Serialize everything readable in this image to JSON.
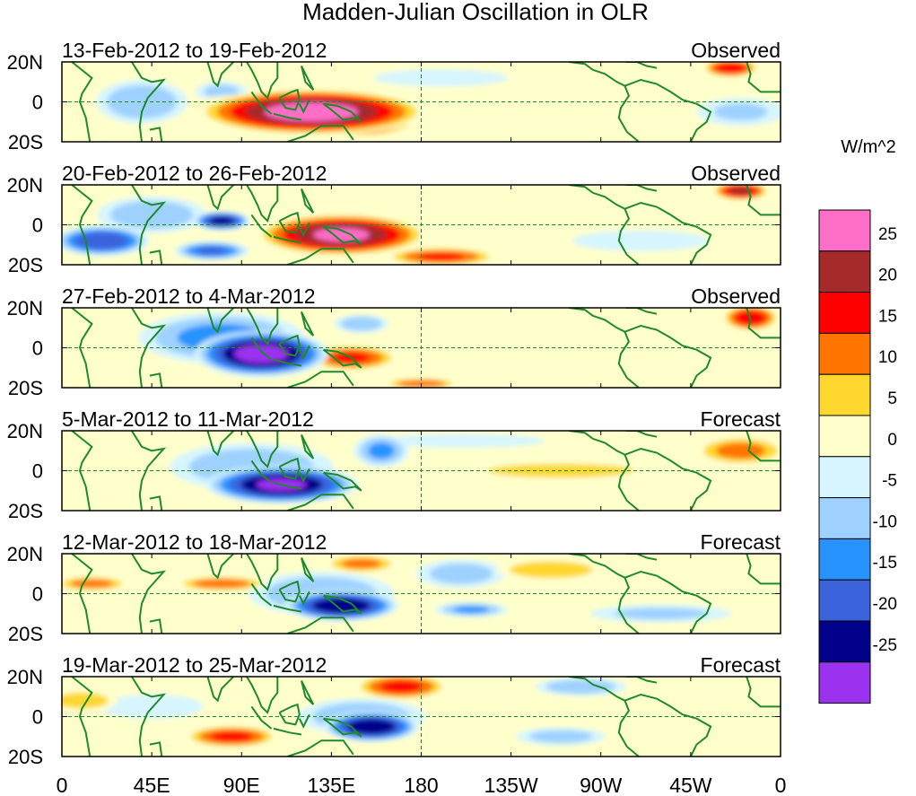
{
  "chart_data": {
    "type": "heatmap",
    "title": "Madden-Julian Oscillation in OLR",
    "units_label": "W/m^2",
    "x_ticks": [
      "0",
      "45E",
      "90E",
      "135E",
      "180",
      "135W",
      "90W",
      "45W",
      "0"
    ],
    "y_ticks": [
      "20N",
      "0",
      "20S"
    ],
    "lon_range": [
      0,
      360
    ],
    "lat_range": [
      -20,
      20
    ],
    "colorbar": {
      "labels": [
        "25",
        "20",
        "15",
        "10",
        "5",
        "0",
        "-5",
        "-10",
        "-15",
        "-20",
        "-25"
      ],
      "colors": [
        "#ff6ec7",
        "#a52a2a",
        "#ff0000",
        "#ff7500",
        "#ffd72e",
        "#ffffcc",
        "#d6f5ff",
        "#9fd1ff",
        "#2693ff",
        "#3b64dc",
        "#00008b",
        "#9a32f0"
      ]
    },
    "panels": [
      {
        "date_range": "13-Feb-2012 to 19-Feb-2012",
        "status": "Observed",
        "anomalies": [
          {
            "lon": 125,
            "lat": -5,
            "value": 30,
            "rx": 60,
            "ry": 12
          },
          {
            "lon": 150,
            "lat": -8,
            "value": 28,
            "rx": 30,
            "ry": 10
          },
          {
            "lon": 90,
            "lat": -3,
            "value": 14,
            "rx": 30,
            "ry": 7
          },
          {
            "lon": 335,
            "lat": 17,
            "value": 22,
            "rx": 15,
            "ry": 5
          },
          {
            "lon": 40,
            "lat": 0,
            "value": -12,
            "rx": 25,
            "ry": 12
          },
          {
            "lon": 80,
            "lat": 5,
            "value": -9,
            "rx": 15,
            "ry": 6
          },
          {
            "lon": 340,
            "lat": -5,
            "value": -8,
            "rx": 25,
            "ry": 8
          },
          {
            "lon": 240,
            "lat": 0,
            "value": 6,
            "rx": 40,
            "ry": 4
          },
          {
            "lon": 190,
            "lat": 12,
            "value": -6,
            "rx": 40,
            "ry": 5
          },
          {
            "lon": 260,
            "lat": -13,
            "value": 5,
            "rx": 30,
            "ry": 4
          }
        ]
      },
      {
        "date_range": "20-Feb-2012 to 26-Feb-2012",
        "status": "Observed",
        "anomalies": [
          {
            "lon": 140,
            "lat": -5,
            "value": 28,
            "rx": 45,
            "ry": 11
          },
          {
            "lon": 190,
            "lat": -16,
            "value": 18,
            "rx": 30,
            "ry": 5
          },
          {
            "lon": 80,
            "lat": 2,
            "value": -25,
            "rx": 15,
            "ry": 5
          },
          {
            "lon": 20,
            "lat": -8,
            "value": -22,
            "rx": 25,
            "ry": 8
          },
          {
            "lon": 75,
            "lat": -13,
            "value": -18,
            "rx": 20,
            "ry": 5
          },
          {
            "lon": 340,
            "lat": 17,
            "value": 24,
            "rx": 15,
            "ry": 5
          },
          {
            "lon": 45,
            "lat": 5,
            "value": -12,
            "rx": 30,
            "ry": 10
          },
          {
            "lon": 220,
            "lat": 8,
            "value": 7,
            "rx": 50,
            "ry": 5
          },
          {
            "lon": 290,
            "lat": -8,
            "value": -7,
            "rx": 40,
            "ry": 6
          }
        ]
      },
      {
        "date_range": "27-Feb-2012 to 4-Mar-2012",
        "status": "Observed",
        "anomalies": [
          {
            "lon": 100,
            "lat": -3,
            "value": -30,
            "rx": 35,
            "ry": 12
          },
          {
            "lon": 80,
            "lat": 5,
            "value": -14,
            "rx": 45,
            "ry": 14
          },
          {
            "lon": 145,
            "lat": -5,
            "value": 18,
            "rx": 25,
            "ry": 7
          },
          {
            "lon": 180,
            "lat": -18,
            "value": 17,
            "rx": 20,
            "ry": 3
          },
          {
            "lon": 345,
            "lat": 15,
            "value": 22,
            "rx": 15,
            "ry": 7
          },
          {
            "lon": 200,
            "lat": 10,
            "value": 7,
            "rx": 40,
            "ry": 6
          },
          {
            "lon": 25,
            "lat": 10,
            "value": 6,
            "rx": 25,
            "ry": 6
          },
          {
            "lon": 150,
            "lat": 12,
            "value": -12,
            "rx": 15,
            "ry": 5
          },
          {
            "lon": 270,
            "lat": 5,
            "value": 6,
            "rx": 40,
            "ry": 5
          }
        ]
      },
      {
        "date_range": "5-Mar-2012 to 11-Mar-2012",
        "status": "Forecast",
        "anomalies": [
          {
            "lon": 110,
            "lat": -7,
            "value": -28,
            "rx": 40,
            "ry": 10
          },
          {
            "lon": 95,
            "lat": 2,
            "value": -12,
            "rx": 45,
            "ry": 13
          },
          {
            "lon": 160,
            "lat": 10,
            "value": -13,
            "rx": 15,
            "ry": 9
          },
          {
            "lon": 250,
            "lat": 0,
            "value": 11,
            "rx": 55,
            "ry": 5
          },
          {
            "lon": 340,
            "lat": 10,
            "value": 14,
            "rx": 25,
            "ry": 8
          },
          {
            "lon": 65,
            "lat": 5,
            "value": 6,
            "rx": 25,
            "ry": 6
          },
          {
            "lon": 30,
            "lat": -5,
            "value": 6,
            "rx": 25,
            "ry": 8
          },
          {
            "lon": 200,
            "lat": 15,
            "value": -6,
            "rx": 50,
            "ry": 4
          },
          {
            "lon": 180,
            "lat": -12,
            "value": 6,
            "rx": 25,
            "ry": 5
          }
        ]
      },
      {
        "date_range": "12-Mar-2012 to 18-Mar-2012",
        "status": "Forecast",
        "anomalies": [
          {
            "lon": 140,
            "lat": -6,
            "value": -27,
            "rx": 30,
            "ry": 8
          },
          {
            "lon": 130,
            "lat": 0,
            "value": -12,
            "rx": 40,
            "ry": 12
          },
          {
            "lon": 80,
            "lat": 5,
            "value": 16,
            "rx": 25,
            "ry": 4
          },
          {
            "lon": 150,
            "lat": 15,
            "value": 14,
            "rx": 20,
            "ry": 5
          },
          {
            "lon": 245,
            "lat": 12,
            "value": 12,
            "rx": 30,
            "ry": 6
          },
          {
            "lon": 200,
            "lat": 10,
            "value": -10,
            "rx": 25,
            "ry": 8
          },
          {
            "lon": 205,
            "lat": -8,
            "value": -13,
            "rx": 20,
            "ry": 4
          },
          {
            "lon": 15,
            "lat": 5,
            "value": 15,
            "rx": 20,
            "ry": 4
          },
          {
            "lon": 300,
            "lat": -10,
            "value": -9,
            "rx": 40,
            "ry": 5
          },
          {
            "lon": 340,
            "lat": -8,
            "value": 7,
            "rx": 25,
            "ry": 5
          },
          {
            "lon": 85,
            "lat": -10,
            "value": 7,
            "rx": 30,
            "ry": 4
          }
        ]
      },
      {
        "date_range": "19-Mar-2012 to 25-Mar-2012",
        "status": "Forecast",
        "anomalies": [
          {
            "lon": 155,
            "lat": -5,
            "value": -27,
            "rx": 25,
            "ry": 8
          },
          {
            "lon": 150,
            "lat": 0,
            "value": -12,
            "rx": 35,
            "ry": 10
          },
          {
            "lon": 170,
            "lat": 15,
            "value": 19,
            "rx": 25,
            "ry": 7
          },
          {
            "lon": 85,
            "lat": -10,
            "value": 19,
            "rx": 25,
            "ry": 6
          },
          {
            "lon": 10,
            "lat": 8,
            "value": 11,
            "rx": 20,
            "ry": 6
          },
          {
            "lon": 220,
            "lat": 0,
            "value": 7,
            "rx": 40,
            "ry": 5
          },
          {
            "lon": 260,
            "lat": 15,
            "value": -12,
            "rx": 25,
            "ry": 5
          },
          {
            "lon": 250,
            "lat": -10,
            "value": -10,
            "rx": 25,
            "ry": 5
          },
          {
            "lon": 45,
            "lat": 5,
            "value": -7,
            "rx": 30,
            "ry": 7
          },
          {
            "lon": 330,
            "lat": 10,
            "value": 6,
            "rx": 30,
            "ry": 7
          }
        ]
      }
    ]
  }
}
